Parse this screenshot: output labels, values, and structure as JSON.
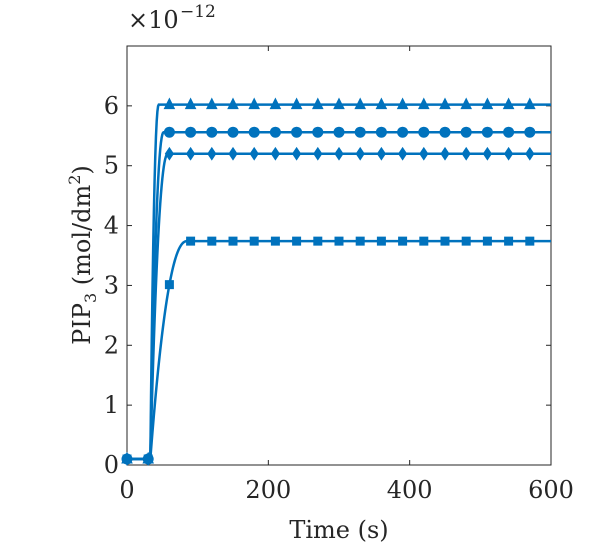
{
  "chart_data": {
    "type": "line",
    "xlabel": "Time (s)",
    "ylabel_main": "PIP",
    "ylabel_sub": "3",
    "ylabel_units_open": " (mol/dm",
    "ylabel_units_sup": "2",
    "ylabel_units_close": ")",
    "y_exponent_prefix": "×10",
    "y_exponent_power": "−12",
    "xlim": [
      0,
      600
    ],
    "ylim": [
      0,
      7
    ],
    "x_ticks": [
      0,
      200,
      400,
      600
    ],
    "x_tick_labels": [
      "0",
      "200",
      "400",
      "600"
    ],
    "y_ticks": [
      0,
      1,
      2,
      3,
      4,
      5,
      6
    ],
    "y_tick_labels": [
      "0",
      "1",
      "2",
      "3",
      "4",
      "5",
      "6"
    ],
    "grid": false,
    "line_color": "#0072BD",
    "series": [
      {
        "marker": "triangle",
        "plateau": 6.02,
        "initial": 0.1,
        "t_rise_start": 33,
        "t_plateau": 45
      },
      {
        "marker": "circle",
        "plateau": 5.56,
        "initial": 0.1,
        "t_rise_start": 33,
        "t_plateau": 52
      },
      {
        "marker": "diamond",
        "plateau": 5.2,
        "initial": 0.1,
        "t_rise_start": 33,
        "t_plateau": 58
      },
      {
        "marker": "square",
        "plateau": 3.74,
        "initial": 0.1,
        "t_rise_start": 33,
        "t_plateau": 85
      }
    ],
    "marker_times": [
      0,
      30,
      60,
      90,
      120,
      150,
      180,
      210,
      240,
      270,
      300,
      330,
      360,
      390,
      420,
      450,
      480,
      510,
      540,
      570
    ]
  }
}
